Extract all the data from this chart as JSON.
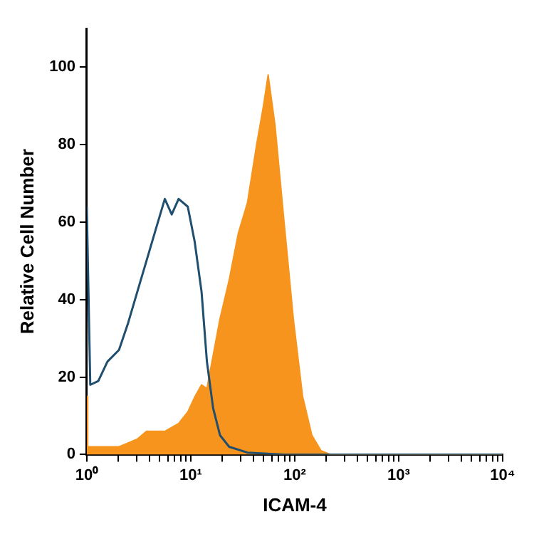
{
  "chart_data": {
    "type": "line",
    "xlabel": "ICAM-4",
    "ylabel": "Relative Cell Number",
    "log": "x",
    "xlim": [
      1,
      10000
    ],
    "ylim": [
      0,
      110
    ],
    "xticks": [
      {
        "value": 1,
        "label": "10⁰"
      },
      {
        "value": 2,
        "label": null
      },
      {
        "value": 3,
        "label": null
      },
      {
        "value": 4,
        "label": null
      },
      {
        "value": 5,
        "label": null
      },
      {
        "value": 6,
        "label": null
      },
      {
        "value": 7,
        "label": null
      },
      {
        "value": 8,
        "label": null
      },
      {
        "value": 9,
        "label": null
      },
      {
        "value": 10,
        "label": "10¹"
      },
      {
        "value": 20,
        "label": null
      },
      {
        "value": 30,
        "label": null
      },
      {
        "value": 40,
        "label": null
      },
      {
        "value": 50,
        "label": null
      },
      {
        "value": 60,
        "label": null
      },
      {
        "value": 70,
        "label": null
      },
      {
        "value": 80,
        "label": null
      },
      {
        "value": 90,
        "label": null
      },
      {
        "value": 100,
        "label": "10²"
      },
      {
        "value": 200,
        "label": null
      },
      {
        "value": 300,
        "label": null
      },
      {
        "value": 400,
        "label": null
      },
      {
        "value": 500,
        "label": null
      },
      {
        "value": 600,
        "label": null
      },
      {
        "value": 700,
        "label": null
      },
      {
        "value": 800,
        "label": null
      },
      {
        "value": 900,
        "label": null
      },
      {
        "value": 1000,
        "label": "10³"
      },
      {
        "value": 2000,
        "label": null
      },
      {
        "value": 3000,
        "label": null
      },
      {
        "value": 4000,
        "label": null
      },
      {
        "value": 5000,
        "label": null
      },
      {
        "value": 6000,
        "label": null
      },
      {
        "value": 7000,
        "label": null
      },
      {
        "value": 8000,
        "label": null
      },
      {
        "value": 9000,
        "label": null
      },
      {
        "value": 10000,
        "label": "10⁴"
      }
    ],
    "yticks": [
      0,
      20,
      40,
      60,
      80,
      100
    ],
    "series": [
      {
        "type": "area",
        "color": "#f7941d",
        "x": [
          1,
          1.01,
          1.02,
          1.5,
          2.04,
          2.5,
          3.06,
          3.75,
          4.59,
          5.63,
          7.64,
          9.36,
          11,
          12.7,
          14.3,
          19.1,
          23.4,
          28.6,
          35.1,
          43,
          50,
          55.5,
          64.6,
          79,
          97,
          119,
          146,
          179,
          220,
          9900
        ],
        "values": [
          15,
          15,
          2,
          2,
          2,
          3,
          4,
          6,
          6,
          6,
          8,
          11,
          15,
          18,
          17,
          35,
          45,
          57,
          65,
          80,
          90,
          98,
          85,
          60,
          35,
          15,
          5,
          1,
          0,
          0
        ]
      },
      {
        "type": "line",
        "color": "#1f4e6e",
        "x": [
          1,
          1.08,
          1.29,
          1.58,
          2.04,
          2.5,
          3.06,
          3.75,
          4.59,
          5.63,
          6.56,
          7.64,
          9.36,
          10.9,
          12.7,
          14.3,
          16.4,
          19.1,
          23.4,
          35.1,
          79,
          9900
        ],
        "values": [
          64,
          18,
          19,
          24,
          27,
          34,
          42,
          50,
          58,
          66,
          62,
          66,
          64,
          55,
          42,
          24,
          12,
          5,
          2,
          0.5,
          0,
          0
        ]
      }
    ]
  }
}
